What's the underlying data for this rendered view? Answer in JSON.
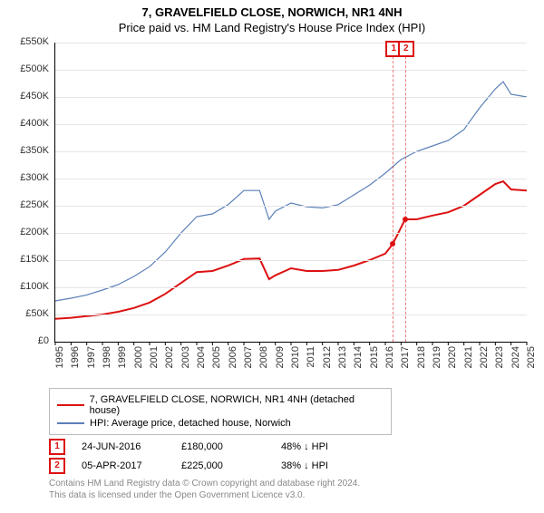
{
  "header": {
    "title": "7, GRAVELFIELD CLOSE, NORWICH, NR1 4NH",
    "subtitle": "Price paid vs. HM Land Registry's House Price Index (HPI)"
  },
  "chart": {
    "type": "line",
    "ylim": [
      0,
      550
    ],
    "ytick_step": 50,
    "ytick_labels": [
      "£0",
      "£50K",
      "£100K",
      "£150K",
      "£200K",
      "£250K",
      "£300K",
      "£350K",
      "£400K",
      "£450K",
      "£500K",
      "£550K"
    ],
    "xlim": [
      1995,
      2025
    ],
    "xtick_step": 1,
    "xtick_labels": [
      "1995",
      "1996",
      "1997",
      "1998",
      "1999",
      "2000",
      "2001",
      "2002",
      "2003",
      "2004",
      "2005",
      "2006",
      "2007",
      "2008",
      "2009",
      "2010",
      "2011",
      "2012",
      "2013",
      "2014",
      "2015",
      "2016",
      "2017",
      "2018",
      "2019",
      "2020",
      "2021",
      "2022",
      "2023",
      "2024",
      "2025"
    ],
    "background_color": "#ffffff",
    "grid_color": "#e5e5e5",
    "axis_color": "#000000",
    "tick_fontsize": 11,
    "series": [
      {
        "name": "property",
        "color": "#dd1111",
        "width": 2,
        "years": [
          1995,
          1996,
          1997,
          1998,
          1999,
          2000,
          2001,
          2002,
          2003,
          2004,
          2005,
          2006,
          2007,
          2008,
          2008.6,
          2009,
          2010,
          2011,
          2012,
          2013,
          2014,
          2015,
          2016,
          2016.48,
          2017.26,
          2018,
          2019,
          2020,
          2021,
          2022,
          2023,
          2023.5,
          2024,
          2025
        ],
        "values": [
          42,
          44,
          47,
          50,
          55,
          62,
          72,
          88,
          108,
          128,
          130,
          140,
          152,
          153,
          115,
          122,
          135,
          130,
          130,
          132,
          140,
          150,
          162,
          180,
          225,
          225,
          232,
          238,
          250,
          270,
          290,
          295,
          280,
          278
        ]
      },
      {
        "name": "hpi",
        "color": "#5b7fb8",
        "width": 1.2,
        "years": [
          1995,
          1996,
          1997,
          1998,
          1999,
          2000,
          2001,
          2002,
          2003,
          2004,
          2005,
          2006,
          2007,
          2008,
          2008.6,
          2009,
          2010,
          2011,
          2012,
          2013,
          2014,
          2015,
          2016,
          2017,
          2018,
          2019,
          2020,
          2021,
          2022,
          2023,
          2023.5,
          2024,
          2025
        ],
        "values": [
          75,
          80,
          86,
          95,
          105,
          120,
          138,
          165,
          200,
          230,
          235,
          252,
          278,
          278,
          225,
          240,
          255,
          248,
          246,
          252,
          270,
          288,
          310,
          335,
          350,
          360,
          370,
          390,
          430,
          465,
          478,
          455,
          450
        ]
      }
    ],
    "sale_markers": [
      {
        "num": "1",
        "year": 2016.48,
        "value": 180
      },
      {
        "num": "2",
        "year": 2017.26,
        "value": 225
      }
    ]
  },
  "legend": {
    "items": [
      {
        "color": "#dd1111",
        "label": "7, GRAVELFIELD CLOSE, NORWICH, NR1 4NH (detached house)"
      },
      {
        "color": "#5b7fb8",
        "label": "HPI: Average price, detached house, Norwich"
      }
    ]
  },
  "transactions": [
    {
      "num": "1",
      "date": "24-JUN-2016",
      "price": "£180,000",
      "pct": "48% ↓ HPI"
    },
    {
      "num": "2",
      "date": "05-APR-2017",
      "price": "£225,000",
      "pct": "38% ↓ HPI"
    }
  ],
  "footer": {
    "line1": "Contains HM Land Registry data © Crown copyright and database right 2024.",
    "line2": "This data is licensed under the Open Government Licence v3.0."
  }
}
